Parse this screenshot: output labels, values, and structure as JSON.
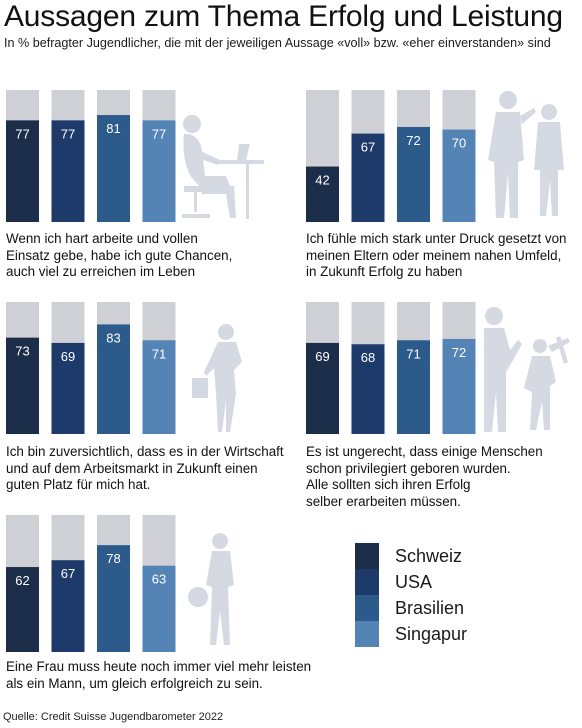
{
  "title": "Aussagen zum Thema Erfolg und Leistung",
  "subtitle": "In % befragter Jugendlicher, die mit der jeweiligen Aussage «voll» bzw. «eher einverstanden» sind",
  "source_label": "Quelle:",
  "source_text": "Credit Suisse Jugendbarometer 2022",
  "colors": {
    "Schweiz": "#1b2d48",
    "USA": "#1d3a6a",
    "Brasilien": "#2b5a8b",
    "Singapur": "#5483b6",
    "background_bar": "#cfd0d6",
    "silhouette": "#d5d9e2"
  },
  "legend": [
    "Schweiz",
    "USA",
    "Brasilien",
    "Singapur"
  ],
  "chart_data": [
    {
      "type": "bar",
      "categories": [
        "Schweiz",
        "USA",
        "Brasilien",
        "Singapur"
      ],
      "values": [
        77,
        77,
        81,
        77
      ],
      "ylim": [
        0,
        100
      ],
      "caption": [
        "Wenn ich hart arbeite und vollen",
        "Einsatz gebe, habe ich gute Chancen,",
        "auch viel zu erreichen im Leben"
      ],
      "silhouette_icon": "desk-worker-silhouette-icon"
    },
    {
      "type": "bar",
      "categories": [
        "Schweiz",
        "USA",
        "Brasilien",
        "Singapur"
      ],
      "values": [
        42,
        67,
        72,
        70
      ],
      "ylim": [
        0,
        100
      ],
      "caption": [
        "Ich fühle mich stark unter Druck gesetzt von",
        "meinen Eltern oder meinem nahen Umfeld,",
        "in Zukunft Erfolg zu haben"
      ],
      "silhouette_icon": "parent-child-silhouette-icon"
    },
    {
      "type": "bar",
      "categories": [
        "Schweiz",
        "USA",
        "Brasilien",
        "Singapur"
      ],
      "values": [
        73,
        69,
        83,
        71
      ],
      "ylim": [
        0,
        100
      ],
      "caption": [
        "Ich bin zuversichtlich, dass es in der Wirtschaft",
        "und auf dem Arbeitsmarkt in Zukunft einen",
        "guten Platz für mich hat."
      ],
      "silhouette_icon": "businesswoman-silhouette-icon"
    },
    {
      "type": "bar",
      "categories": [
        "Schweiz",
        "USA",
        "Brasilien",
        "Singapur"
      ],
      "values": [
        69,
        68,
        71,
        72
      ],
      "ylim": [
        0,
        100
      ],
      "caption": [
        "Es ist ungerecht, dass einige Menschen",
        "schon privilegiert geboren wurden.",
        "Alle sollten sich ihren Erfolg",
        "selber erarbeiten müssen."
      ],
      "silhouette_icon": "worker-silhouette-icon"
    },
    {
      "type": "bar",
      "categories": [
        "Schweiz",
        "USA",
        "Brasilien",
        "Singapur"
      ],
      "values": [
        62,
        67,
        78,
        63
      ],
      "ylim": [
        0,
        100
      ],
      "caption": [
        "Eine Frau muss heute noch immer viel mehr leisten",
        "als ein Mann, um gleich erfolgreich zu sein."
      ],
      "silhouette_icon": "woman-phone-silhouette-icon"
    }
  ]
}
